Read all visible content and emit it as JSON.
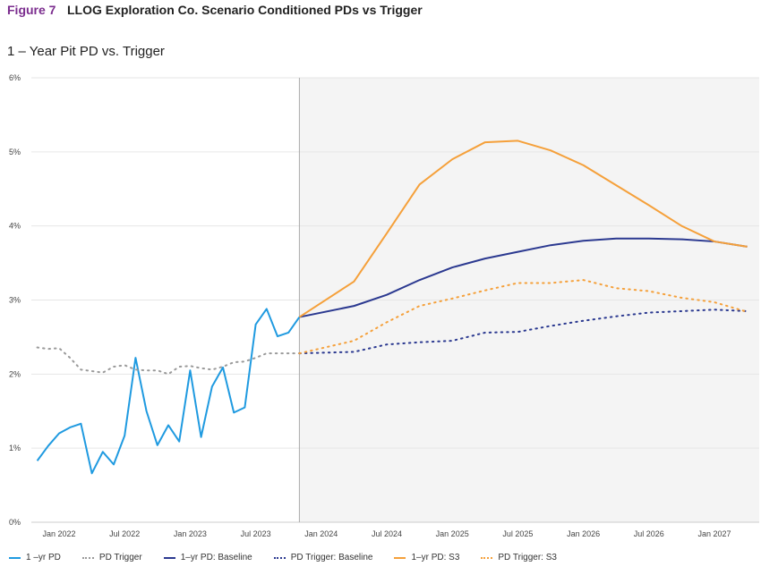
{
  "figure_label": "Figure 7",
  "title": "LLOG Exploration Co. Scenario Conditioned PDs vs Trigger",
  "chart_data": {
    "type": "line",
    "subtitle": "1 – Year Pit PD vs. Trigger",
    "ylim": [
      0,
      6
    ],
    "y_ticks": [
      "0%",
      "1%",
      "2%",
      "3%",
      "4%",
      "5%",
      "6%"
    ],
    "x_ticks": [
      {
        "m": 0,
        "label": "Jan 2022"
      },
      {
        "m": 6,
        "label": "Jul 2022"
      },
      {
        "m": 12,
        "label": "Jan 2023"
      },
      {
        "m": 18,
        "label": "Jul 2023"
      },
      {
        "m": 24,
        "label": "Jan 2024"
      },
      {
        "m": 30,
        "label": "Jul 2024"
      },
      {
        "m": 36,
        "label": "Jan 2025"
      },
      {
        "m": 42,
        "label": "Jul 2025"
      },
      {
        "m": 48,
        "label": "Jan 2026"
      },
      {
        "m": 54,
        "label": "Jul 2026"
      },
      {
        "m": 60,
        "label": "Jan 2027"
      }
    ],
    "x_units": "months since Jan 2022",
    "xlim": [
      -2,
      63.5
    ],
    "forecast_start_m": 22,
    "series": [
      {
        "name": "1 –yr PD",
        "color": "#1f9ae0",
        "dash": "solid",
        "x": [
          -2,
          -1,
          0,
          1,
          2,
          3,
          4,
          5,
          6,
          7,
          8,
          9,
          10,
          11,
          12,
          13,
          14,
          15,
          16,
          17,
          18,
          19,
          20,
          21,
          22
        ],
        "values": [
          0.83,
          1.03,
          1.2,
          1.28,
          1.33,
          0.66,
          0.95,
          0.78,
          1.17,
          2.22,
          1.5,
          1.04,
          1.31,
          1.09,
          2.05,
          1.15,
          1.83,
          2.09,
          1.48,
          1.55,
          2.67,
          2.88,
          2.51,
          2.56,
          2.77
        ]
      },
      {
        "name": "PD Trigger",
        "color": "#9a9a9a",
        "dash": "dot",
        "x": [
          -2,
          -1,
          0,
          1,
          2,
          3,
          4,
          5,
          6,
          7,
          8,
          9,
          10,
          11,
          12,
          13,
          14,
          15,
          16,
          17,
          18,
          19,
          20,
          21,
          22
        ],
        "values": [
          2.36,
          2.34,
          2.35,
          2.22,
          2.06,
          2.04,
          2.02,
          2.1,
          2.12,
          2.06,
          2.05,
          2.05,
          2.0,
          2.1,
          2.11,
          2.08,
          2.06,
          2.1,
          2.16,
          2.17,
          2.22,
          2.28,
          2.28,
          2.28,
          2.28
        ]
      },
      {
        "name": "1–yr PD: Baseline",
        "color": "#2b3990",
        "dash": "solid",
        "x": [
          22,
          27,
          30,
          33,
          36,
          39,
          42,
          45,
          48,
          51,
          54,
          57,
          60,
          63
        ],
        "values": [
          2.77,
          2.92,
          3.07,
          3.27,
          3.44,
          3.56,
          3.65,
          3.74,
          3.8,
          3.83,
          3.83,
          3.82,
          3.79,
          3.72
        ]
      },
      {
        "name": "PD Trigger: Baseline",
        "color": "#2b3990",
        "dash": "dot",
        "x": [
          22,
          27,
          30,
          33,
          36,
          39,
          42,
          45,
          48,
          51,
          54,
          57,
          60,
          63
        ],
        "values": [
          2.28,
          2.3,
          2.4,
          2.43,
          2.45,
          2.56,
          2.57,
          2.65,
          2.72,
          2.78,
          2.83,
          2.85,
          2.87,
          2.85
        ]
      },
      {
        "name": "1–yr PD: S3",
        "color": "#f5a03a",
        "dash": "solid",
        "x": [
          22,
          27,
          30,
          33,
          36,
          39,
          42,
          45,
          48,
          51,
          54,
          57,
          60,
          63
        ],
        "values": [
          2.77,
          3.25,
          3.9,
          4.56,
          4.9,
          5.13,
          5.15,
          5.02,
          4.82,
          4.55,
          4.28,
          4.0,
          3.79,
          3.72
        ]
      },
      {
        "name": "PD Trigger: S3",
        "color": "#f5a03a",
        "dash": "dot",
        "x": [
          22,
          27,
          30,
          33,
          36,
          39,
          42,
          45,
          48,
          51,
          54,
          57,
          60,
          63
        ],
        "values": [
          2.28,
          2.45,
          2.7,
          2.92,
          3.02,
          3.13,
          3.23,
          3.23,
          3.27,
          3.16,
          3.12,
          3.03,
          2.97,
          2.84
        ]
      }
    ],
    "legend": "bottom"
  }
}
